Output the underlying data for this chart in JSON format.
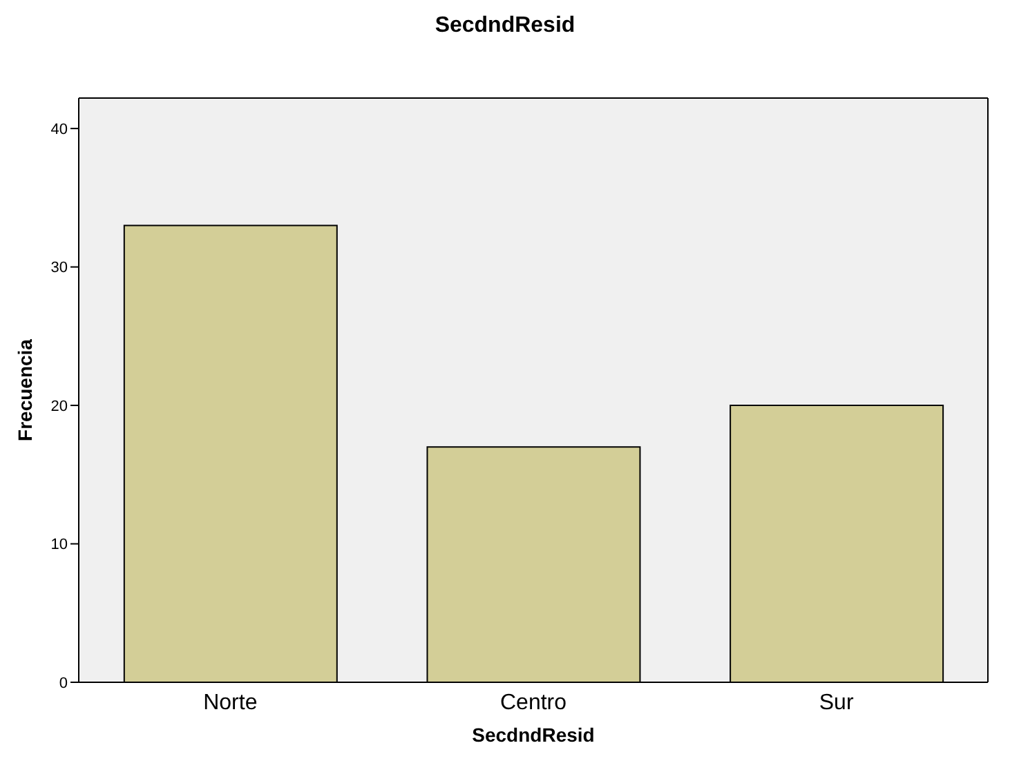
{
  "chart_data": {
    "type": "bar",
    "title": "SecdndResid",
    "xlabel": "SecdndResid",
    "ylabel": "Frecuencia",
    "categories": [
      "Norte",
      "Centro",
      "Sur"
    ],
    "values": [
      33,
      17,
      20
    ],
    "color": "#d3ce97",
    "ylim": [
      0,
      42.2
    ],
    "yticks": [
      0,
      10,
      20,
      30,
      40
    ]
  }
}
